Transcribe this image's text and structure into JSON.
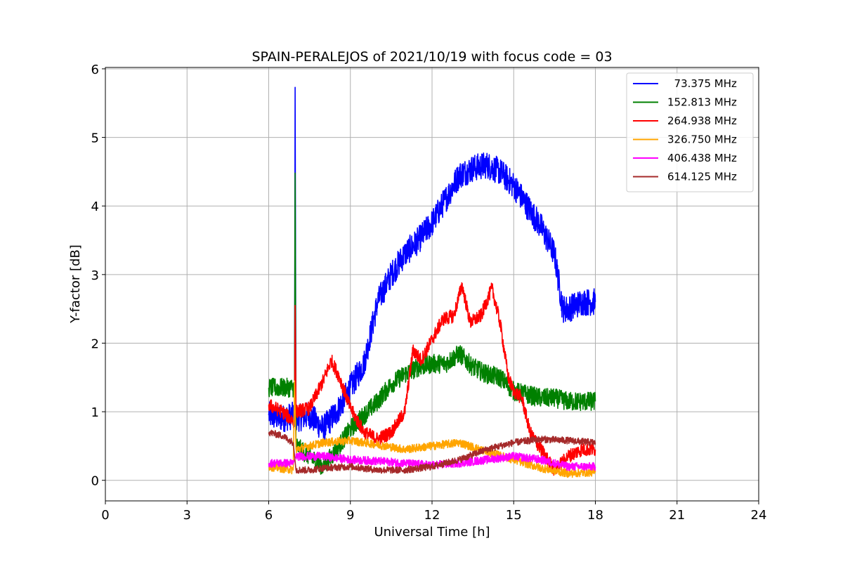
{
  "chart_data": {
    "type": "line",
    "title": "SPAIN-PERALEJOS of 2021/10/19 with focus code = 03",
    "xlabel": "Universal Time [h]",
    "ylabel": "Y-factor [dB]",
    "xlim": [
      0,
      24
    ],
    "ylim": [
      -0.3,
      6.02
    ],
    "xticks": [
      "0",
      "3",
      "6",
      "9",
      "12",
      "15",
      "18",
      "21",
      "24"
    ],
    "yticks": [
      "0",
      "1",
      "2",
      "3",
      "4",
      "5",
      "6"
    ],
    "grid": true,
    "legend_position": "top-right",
    "series": [
      {
        "name": "  73.375 MHz",
        "color": "#0000ff",
        "noise": 0.2,
        "x": [
          6.0,
          6.5,
          6.95,
          6.97,
          7.0,
          7.5,
          8.0,
          8.5,
          9.0,
          9.5,
          10.0,
          10.5,
          11.0,
          11.5,
          12.0,
          12.5,
          13.0,
          13.5,
          14.0,
          14.5,
          15.0,
          15.5,
          16.0,
          16.5,
          16.8,
          17.0,
          17.5,
          18.0
        ],
        "y": [
          0.95,
          0.9,
          0.95,
          5.73,
          0.9,
          0.95,
          0.75,
          1.0,
          1.35,
          1.7,
          2.6,
          3.0,
          3.3,
          3.5,
          3.75,
          4.1,
          4.45,
          4.55,
          4.6,
          4.5,
          4.3,
          4.0,
          3.7,
          3.3,
          2.5,
          2.5,
          2.6,
          2.6
        ]
      },
      {
        "name": "152.813 MHz",
        "color": "#008000",
        "noise": 0.14,
        "x": [
          6.0,
          6.5,
          6.95,
          6.97,
          7.0,
          7.5,
          8.0,
          8.5,
          9.0,
          9.5,
          10.0,
          10.5,
          11.0,
          11.5,
          12.0,
          12.5,
          13.0,
          13.5,
          14.0,
          14.5,
          15.0,
          15.5,
          16.0,
          16.5,
          17.0,
          17.5,
          18.0
        ],
        "y": [
          1.35,
          1.35,
          1.35,
          4.48,
          0.5,
          0.35,
          0.2,
          0.45,
          0.75,
          0.95,
          1.15,
          1.4,
          1.55,
          1.65,
          1.7,
          1.7,
          1.85,
          1.65,
          1.55,
          1.5,
          1.3,
          1.25,
          1.2,
          1.2,
          1.15,
          1.15,
          1.15
        ]
      },
      {
        "name": "264.938 MHz",
        "color": "#ff0000",
        "noise": 0.1,
        "x": [
          6.0,
          6.5,
          6.95,
          6.97,
          7.0,
          7.5,
          8.0,
          8.3,
          8.6,
          9.0,
          9.5,
          10.0,
          10.5,
          11.0,
          11.3,
          11.6,
          12.0,
          12.4,
          12.8,
          13.1,
          13.4,
          13.8,
          14.2,
          14.5,
          14.8,
          15.0,
          15.3,
          15.6,
          16.0,
          16.5,
          17.0,
          17.5,
          18.0
        ],
        "y": [
          1.1,
          1.0,
          0.85,
          2.55,
          1.0,
          1.05,
          1.45,
          1.75,
          1.5,
          1.05,
          0.7,
          0.6,
          0.7,
          1.0,
          1.9,
          1.75,
          2.05,
          2.35,
          2.4,
          2.85,
          2.3,
          2.4,
          2.8,
          2.3,
          1.5,
          1.3,
          1.2,
          0.7,
          0.45,
          0.15,
          0.35,
          0.45,
          0.45
        ]
      },
      {
        "name": "326.750 MHz",
        "color": "#ffa500",
        "noise": 0.06,
        "x": [
          6.0,
          6.9,
          6.95,
          7.0,
          8.0,
          9.0,
          10.0,
          11.0,
          12.0,
          13.0,
          14.0,
          15.0,
          16.0,
          17.0,
          18.0
        ],
        "y": [
          0.2,
          0.15,
          1.45,
          0.45,
          0.55,
          0.58,
          0.52,
          0.45,
          0.5,
          0.55,
          0.42,
          0.3,
          0.18,
          0.1,
          0.12
        ]
      },
      {
        "name": "406.438 MHz",
        "color": "#ff00ff",
        "noise": 0.06,
        "x": [
          6.0,
          6.9,
          7.0,
          8.0,
          9.0,
          10.0,
          11.0,
          12.0,
          13.0,
          14.0,
          15.0,
          16.0,
          17.0,
          18.0
        ],
        "y": [
          0.25,
          0.25,
          0.35,
          0.35,
          0.3,
          0.28,
          0.25,
          0.22,
          0.25,
          0.3,
          0.35,
          0.3,
          0.2,
          0.2
        ]
      },
      {
        "name": "614.125 MHz",
        "color": "#a52a2a",
        "noise": 0.05,
        "x": [
          6.0,
          6.5,
          6.9,
          7.0,
          7.5,
          8.0,
          9.0,
          10.0,
          11.0,
          12.0,
          13.0,
          14.0,
          15.0,
          16.0,
          17.0,
          18.0
        ],
        "y": [
          0.7,
          0.65,
          0.55,
          0.15,
          0.15,
          0.18,
          0.2,
          0.15,
          0.15,
          0.2,
          0.3,
          0.45,
          0.55,
          0.6,
          0.58,
          0.55
        ]
      }
    ]
  }
}
